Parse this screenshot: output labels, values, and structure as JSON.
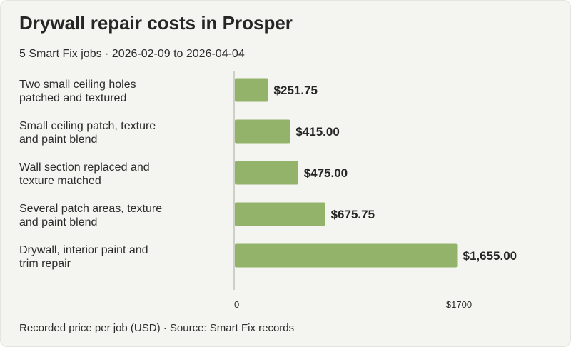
{
  "title": "Drywall repair costs in Prosper",
  "subtitle": "5 Smart Fix jobs · 2026-02-09 to 2026-04-04",
  "footer": "Recorded price per job (USD) · Source: Smart Fix records",
  "colors": {
    "bar": "#93b36a",
    "axis": "#bfc4b8",
    "background": "#f4f5f0"
  },
  "chart_data": {
    "type": "bar",
    "orientation": "horizontal",
    "categories": [
      [
        "Two small ceiling holes",
        "patched and textured"
      ],
      [
        "Small ceiling patch, texture",
        "and paint blend"
      ],
      [
        "Wall section replaced and",
        "texture matched"
      ],
      [
        "Several patch areas, texture",
        "and paint blend"
      ],
      [
        "Drywall, interior paint and",
        "trim repair"
      ]
    ],
    "values": [
      251.75,
      415.0,
      475.0,
      675.75,
      1655.0
    ],
    "value_labels": [
      "$251.75",
      "$415.00",
      "$475.00",
      "$675.75",
      "$1,655.00"
    ],
    "xlim": [
      0,
      1700
    ],
    "ticks": [
      0,
      1700
    ],
    "tick_labels": [
      "0",
      "$1700"
    ],
    "grid": false,
    "legend": "none"
  }
}
